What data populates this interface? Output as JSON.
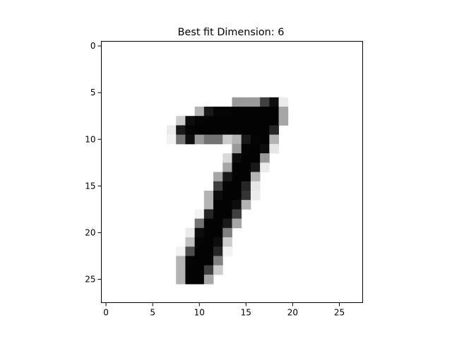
{
  "chart_data": {
    "type": "heatmap",
    "title": "Best fit Dimension: 6",
    "xlabel": "",
    "ylabel": "",
    "colormap": "gray_r",
    "xlim": [
      -0.5,
      27.5
    ],
    "ylim": [
      27.5,
      -0.5
    ],
    "xticks": [
      0,
      5,
      10,
      15,
      20,
      25
    ],
    "yticks": [
      0,
      5,
      10,
      15,
      20,
      25
    ],
    "grid": false,
    "legend": "none",
    "matrix_rows": 28,
    "matrix_cols": 28,
    "cells": [
      {
        "r": 6,
        "c": 14,
        "v": 0.4
      },
      {
        "r": 6,
        "c": 15,
        "v": 0.4
      },
      {
        "r": 6,
        "c": 16,
        "v": 0.4
      },
      {
        "r": 6,
        "c": 17,
        "v": 0.75
      },
      {
        "r": 6,
        "c": 18,
        "v": 0.95
      },
      {
        "r": 6,
        "c": 19,
        "v": 0.08
      },
      {
        "r": 7,
        "c": 10,
        "v": 0.3
      },
      {
        "r": 7,
        "c": 11,
        "v": 0.9
      },
      {
        "r": 7,
        "c": 12,
        "v": 0.98
      },
      {
        "r": 7,
        "c": 13,
        "v": 0.98
      },
      {
        "r": 7,
        "c": 14,
        "v": 0.99
      },
      {
        "r": 7,
        "c": 15,
        "v": 0.99
      },
      {
        "r": 7,
        "c": 16,
        "v": 0.99
      },
      {
        "r": 7,
        "c": 17,
        "v": 0.99
      },
      {
        "r": 7,
        "c": 18,
        "v": 0.99
      },
      {
        "r": 7,
        "c": 19,
        "v": 0.35
      },
      {
        "r": 8,
        "c": 8,
        "v": 0.2
      },
      {
        "r": 8,
        "c": 9,
        "v": 0.95
      },
      {
        "r": 8,
        "c": 10,
        "v": 0.98
      },
      {
        "r": 8,
        "c": 11,
        "v": 0.99
      },
      {
        "r": 8,
        "c": 12,
        "v": 0.99
      },
      {
        "r": 8,
        "c": 13,
        "v": 0.99
      },
      {
        "r": 8,
        "c": 14,
        "v": 0.99
      },
      {
        "r": 8,
        "c": 15,
        "v": 0.99
      },
      {
        "r": 8,
        "c": 16,
        "v": 0.99
      },
      {
        "r": 8,
        "c": 17,
        "v": 0.99
      },
      {
        "r": 8,
        "c": 18,
        "v": 0.99
      },
      {
        "r": 8,
        "c": 19,
        "v": 0.35
      },
      {
        "r": 9,
        "c": 7,
        "v": 0.08
      },
      {
        "r": 9,
        "c": 8,
        "v": 0.9
      },
      {
        "r": 9,
        "c": 9,
        "v": 0.98
      },
      {
        "r": 9,
        "c": 10,
        "v": 0.99
      },
      {
        "r": 9,
        "c": 11,
        "v": 0.99
      },
      {
        "r": 9,
        "c": 12,
        "v": 0.99
      },
      {
        "r": 9,
        "c": 13,
        "v": 0.99
      },
      {
        "r": 9,
        "c": 14,
        "v": 0.99
      },
      {
        "r": 9,
        "c": 15,
        "v": 0.99
      },
      {
        "r": 9,
        "c": 16,
        "v": 0.99
      },
      {
        "r": 9,
        "c": 17,
        "v": 0.99
      },
      {
        "r": 9,
        "c": 18,
        "v": 0.85
      },
      {
        "r": 10,
        "c": 7,
        "v": 0.05
      },
      {
        "r": 10,
        "c": 8,
        "v": 0.55
      },
      {
        "r": 10,
        "c": 9,
        "v": 0.95
      },
      {
        "r": 10,
        "c": 10,
        "v": 0.4
      },
      {
        "r": 10,
        "c": 11,
        "v": 0.55
      },
      {
        "r": 10,
        "c": 12,
        "v": 0.55
      },
      {
        "r": 10,
        "c": 13,
        "v": 0.2
      },
      {
        "r": 10,
        "c": 14,
        "v": 0.3
      },
      {
        "r": 10,
        "c": 15,
        "v": 0.9
      },
      {
        "r": 10,
        "c": 16,
        "v": 0.98
      },
      {
        "r": 10,
        "c": 17,
        "v": 0.99
      },
      {
        "r": 10,
        "c": 18,
        "v": 0.3
      },
      {
        "r": 11,
        "c": 14,
        "v": 0.4
      },
      {
        "r": 11,
        "c": 15,
        "v": 0.98
      },
      {
        "r": 11,
        "c": 16,
        "v": 0.99
      },
      {
        "r": 11,
        "c": 17,
        "v": 0.95
      },
      {
        "r": 11,
        "c": 18,
        "v": 0.1
      },
      {
        "r": 12,
        "c": 13,
        "v": 0.15
      },
      {
        "r": 12,
        "c": 14,
        "v": 0.95
      },
      {
        "r": 12,
        "c": 15,
        "v": 0.99
      },
      {
        "r": 12,
        "c": 16,
        "v": 0.99
      },
      {
        "r": 12,
        "c": 17,
        "v": 0.4
      },
      {
        "r": 13,
        "c": 13,
        "v": 0.35
      },
      {
        "r": 13,
        "c": 14,
        "v": 0.99
      },
      {
        "r": 13,
        "c": 15,
        "v": 0.99
      },
      {
        "r": 13,
        "c": 16,
        "v": 0.9
      },
      {
        "r": 13,
        "c": 17,
        "v": 0.08
      },
      {
        "r": 14,
        "c": 12,
        "v": 0.35
      },
      {
        "r": 14,
        "c": 13,
        "v": 0.9
      },
      {
        "r": 14,
        "c": 14,
        "v": 0.99
      },
      {
        "r": 14,
        "c": 15,
        "v": 0.99
      },
      {
        "r": 14,
        "c": 16,
        "v": 0.3
      },
      {
        "r": 15,
        "c": 12,
        "v": 0.75
      },
      {
        "r": 15,
        "c": 13,
        "v": 0.99
      },
      {
        "r": 15,
        "c": 14,
        "v": 0.99
      },
      {
        "r": 15,
        "c": 15,
        "v": 0.85
      },
      {
        "r": 15,
        "c": 16,
        "v": 0.1
      },
      {
        "r": 16,
        "c": 11,
        "v": 0.3
      },
      {
        "r": 16,
        "c": 12,
        "v": 0.95
      },
      {
        "r": 16,
        "c": 13,
        "v": 0.99
      },
      {
        "r": 16,
        "c": 14,
        "v": 0.99
      },
      {
        "r": 16,
        "c": 15,
        "v": 0.8
      },
      {
        "r": 16,
        "c": 16,
        "v": 0.08
      },
      {
        "r": 17,
        "c": 11,
        "v": 0.3
      },
      {
        "r": 17,
        "c": 12,
        "v": 0.99
      },
      {
        "r": 17,
        "c": 13,
        "v": 0.99
      },
      {
        "r": 17,
        "c": 14,
        "v": 0.95
      },
      {
        "r": 17,
        "c": 15,
        "v": 0.3
      },
      {
        "r": 18,
        "c": 10,
        "v": 0.05
      },
      {
        "r": 18,
        "c": 11,
        "v": 0.85
      },
      {
        "r": 18,
        "c": 12,
        "v": 0.99
      },
      {
        "r": 18,
        "c": 13,
        "v": 0.99
      },
      {
        "r": 18,
        "c": 14,
        "v": 0.75
      },
      {
        "r": 19,
        "c": 10,
        "v": 0.55
      },
      {
        "r": 19,
        "c": 11,
        "v": 0.99
      },
      {
        "r": 19,
        "c": 12,
        "v": 0.99
      },
      {
        "r": 19,
        "c": 13,
        "v": 0.9
      },
      {
        "r": 19,
        "c": 14,
        "v": 0.35
      },
      {
        "r": 20,
        "c": 9,
        "v": 0.08
      },
      {
        "r": 20,
        "c": 10,
        "v": 0.95
      },
      {
        "r": 20,
        "c": 11,
        "v": 0.99
      },
      {
        "r": 20,
        "c": 12,
        "v": 0.99
      },
      {
        "r": 20,
        "c": 13,
        "v": 0.5
      },
      {
        "r": 21,
        "c": 9,
        "v": 0.25
      },
      {
        "r": 21,
        "c": 10,
        "v": 0.98
      },
      {
        "r": 21,
        "c": 11,
        "v": 0.99
      },
      {
        "r": 21,
        "c": 12,
        "v": 0.95
      },
      {
        "r": 21,
        "c": 13,
        "v": 0.2
      },
      {
        "r": 22,
        "c": 8,
        "v": 0.05
      },
      {
        "r": 22,
        "c": 9,
        "v": 0.7
      },
      {
        "r": 22,
        "c": 10,
        "v": 0.99
      },
      {
        "r": 22,
        "c": 11,
        "v": 0.99
      },
      {
        "r": 22,
        "c": 12,
        "v": 0.85
      },
      {
        "r": 22,
        "c": 13,
        "v": 0.05
      },
      {
        "r": 23,
        "c": 8,
        "v": 0.3
      },
      {
        "r": 23,
        "c": 9,
        "v": 0.98
      },
      {
        "r": 23,
        "c": 10,
        "v": 0.99
      },
      {
        "r": 23,
        "c": 11,
        "v": 0.99
      },
      {
        "r": 23,
        "c": 12,
        "v": 0.5
      },
      {
        "r": 24,
        "c": 8,
        "v": 0.3
      },
      {
        "r": 24,
        "c": 9,
        "v": 0.99
      },
      {
        "r": 24,
        "c": 10,
        "v": 0.99
      },
      {
        "r": 24,
        "c": 11,
        "v": 0.75
      },
      {
        "r": 24,
        "c": 12,
        "v": 0.2
      },
      {
        "r": 25,
        "c": 8,
        "v": 0.3
      },
      {
        "r": 25,
        "c": 9,
        "v": 0.99
      },
      {
        "r": 25,
        "c": 10,
        "v": 0.99
      },
      {
        "r": 25,
        "c": 11,
        "v": 0.35
      }
    ]
  }
}
